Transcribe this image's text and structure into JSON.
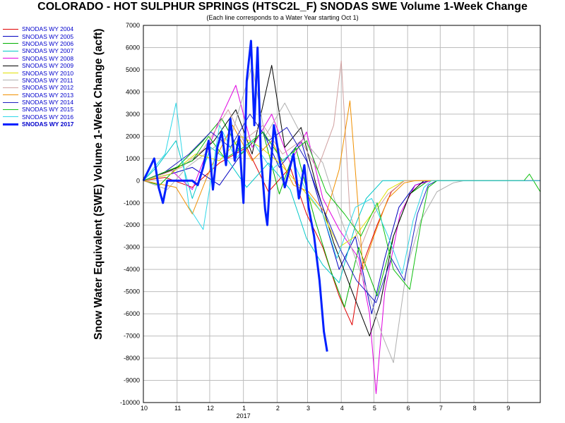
{
  "chart_data": {
    "type": "line",
    "title": "COLORADO - HOT SULPHUR SPRINGS (HTSC2L_F) SNODAS SWE Volume 1-Week Change",
    "subtitle": "(Each line corresponds to a Water Year starting Oct 1)",
    "ylabel": "Snow Water Equivalent (SWE) Volume 1-Week Change (acft)",
    "xlabel_year": "2017",
    "ylim": [
      -10000,
      7000
    ],
    "yticks": [
      7000,
      6000,
      5000,
      4000,
      3000,
      2000,
      1000,
      0,
      -1000,
      -2000,
      -3000,
      -4000,
      -5000,
      -6000,
      -7000,
      -8000,
      -9000,
      -10000
    ],
    "xlim": [
      0,
      365
    ],
    "xticks": [
      {
        "label": "10",
        "day": 0
      },
      {
        "label": "11",
        "day": 31
      },
      {
        "label": "12",
        "day": 61
      },
      {
        "label": "1",
        "day": 92
      },
      {
        "label": "2",
        "day": 123
      },
      {
        "label": "3",
        "day": 151
      },
      {
        "label": "4",
        "day": 182
      },
      {
        "label": "5",
        "day": 212
      },
      {
        "label": "6",
        "day": 243
      },
      {
        "label": "7",
        "day": 273
      },
      {
        "label": "8",
        "day": 304
      },
      {
        "label": "9",
        "day": 335
      }
    ],
    "grid": true,
    "legend_position": "left",
    "series": [
      {
        "name": "SNODAS WY 2004",
        "color": "#e00000",
        "width": 1,
        "points": [
          [
            0,
            0
          ],
          [
            20,
            150
          ],
          [
            45,
            -300
          ],
          [
            70,
            800
          ],
          [
            95,
            1500
          ],
          [
            115,
            -500
          ],
          [
            135,
            600
          ],
          [
            150,
            -1500
          ],
          [
            165,
            -3000
          ],
          [
            180,
            -5200
          ],
          [
            192,
            -6500
          ],
          [
            200,
            -4000
          ],
          [
            215,
            -2000
          ],
          [
            228,
            -500
          ],
          [
            240,
            0
          ],
          [
            365,
            0
          ]
        ]
      },
      {
        "name": "SNODAS WY 2005",
        "color": "#0000c0",
        "width": 1,
        "points": [
          [
            0,
            0
          ],
          [
            25,
            300
          ],
          [
            45,
            600
          ],
          [
            70,
            -200
          ],
          [
            90,
            1200
          ],
          [
            110,
            2200
          ],
          [
            125,
            600
          ],
          [
            145,
            1800
          ],
          [
            165,
            -1500
          ],
          [
            180,
            -4000
          ],
          [
            195,
            -2500
          ],
          [
            210,
            -6000
          ],
          [
            222,
            -3500
          ],
          [
            235,
            -1200
          ],
          [
            250,
            -200
          ],
          [
            262,
            0
          ],
          [
            365,
            0
          ]
        ]
      },
      {
        "name": "SNODAS WY 2006",
        "color": "#00b000",
        "width": 1,
        "points": [
          [
            0,
            0
          ],
          [
            15,
            -200
          ],
          [
            35,
            800
          ],
          [
            55,
            1800
          ],
          [
            72,
            2800
          ],
          [
            90,
            1200
          ],
          [
            110,
            2200
          ],
          [
            125,
            -600
          ],
          [
            140,
            1500
          ],
          [
            158,
            -1800
          ],
          [
            172,
            -4000
          ],
          [
            185,
            -5700
          ],
          [
            198,
            -3000
          ],
          [
            215,
            -5200
          ],
          [
            230,
            -2500
          ],
          [
            245,
            -600
          ],
          [
            262,
            0
          ],
          [
            365,
            0
          ]
        ]
      },
      {
        "name": "SNODAS WY 2007",
        "color": "#00c8c8",
        "width": 1,
        "points": [
          [
            0,
            0
          ],
          [
            12,
            600
          ],
          [
            30,
            1800
          ],
          [
            45,
            -800
          ],
          [
            62,
            1500
          ],
          [
            78,
            900
          ],
          [
            95,
            -300
          ],
          [
            115,
            800
          ],
          [
            135,
            -400
          ],
          [
            150,
            -2600
          ],
          [
            165,
            -3800
          ],
          [
            180,
            -4600
          ],
          [
            195,
            -2000
          ],
          [
            205,
            -800
          ],
          [
            220,
            0
          ],
          [
            365,
            0
          ]
        ]
      },
      {
        "name": "SNODAS WY 2008",
        "color": "#e000e0",
        "width": 1,
        "points": [
          [
            0,
            0
          ],
          [
            25,
            500
          ],
          [
            45,
            -400
          ],
          [
            68,
            2500
          ],
          [
            85,
            4300
          ],
          [
            100,
            1500
          ],
          [
            118,
            3000
          ],
          [
            135,
            800
          ],
          [
            150,
            2200
          ],
          [
            165,
            -800
          ],
          [
            180,
            -2200
          ],
          [
            198,
            -3500
          ],
          [
            208,
            -6000
          ],
          [
            214,
            -9600
          ],
          [
            222,
            -5000
          ],
          [
            236,
            -1500
          ],
          [
            250,
            -200
          ],
          [
            265,
            0
          ],
          [
            365,
            0
          ]
        ]
      },
      {
        "name": "SNODAS WY 2009",
        "color": "#000000",
        "width": 1,
        "points": [
          [
            0,
            0
          ],
          [
            22,
            400
          ],
          [
            45,
            900
          ],
          [
            65,
            1800
          ],
          [
            85,
            3200
          ],
          [
            100,
            1200
          ],
          [
            118,
            5200
          ],
          [
            130,
            1500
          ],
          [
            145,
            2400
          ],
          [
            160,
            -400
          ],
          [
            175,
            -2800
          ],
          [
            192,
            -5000
          ],
          [
            208,
            -7000
          ],
          [
            218,
            -5500
          ],
          [
            230,
            -2500
          ],
          [
            245,
            -600
          ],
          [
            258,
            0
          ],
          [
            365,
            0
          ]
        ]
      },
      {
        "name": "SNODAS WY 2010",
        "color": "#e0e000",
        "width": 1,
        "points": [
          [
            0,
            0
          ],
          [
            25,
            300
          ],
          [
            48,
            1200
          ],
          [
            70,
            900
          ],
          [
            90,
            2000
          ],
          [
            108,
            1500
          ],
          [
            125,
            800
          ],
          [
            145,
            -300
          ],
          [
            165,
            -1500
          ],
          [
            180,
            -3000
          ],
          [
            195,
            -2500
          ],
          [
            210,
            -1500
          ],
          [
            225,
            -400
          ],
          [
            240,
            0
          ],
          [
            365,
            0
          ]
        ]
      },
      {
        "name": "SNODAS WY 2011",
        "color": "#b0b0b0",
        "width": 1,
        "points": [
          [
            0,
            0
          ],
          [
            22,
            -400
          ],
          [
            40,
            600
          ],
          [
            65,
            1500
          ],
          [
            82,
            2200
          ],
          [
            100,
            5200
          ],
          [
            112,
            2000
          ],
          [
            130,
            3500
          ],
          [
            148,
            1800
          ],
          [
            165,
            800
          ],
          [
            180,
            -1500
          ],
          [
            195,
            -3500
          ],
          [
            210,
            -5500
          ],
          [
            220,
            -7000
          ],
          [
            230,
            -8200
          ],
          [
            242,
            -4000
          ],
          [
            255,
            -1800
          ],
          [
            270,
            -500
          ],
          [
            285,
            -100
          ],
          [
            295,
            0
          ],
          [
            365,
            0
          ]
        ]
      },
      {
        "name": "SNODAS WY 2012",
        "color": "#d0a0a0",
        "width": 1,
        "points": [
          [
            0,
            0
          ],
          [
            18,
            300
          ],
          [
            35,
            600
          ],
          [
            55,
            1400
          ],
          [
            78,
            3200
          ],
          [
            92,
            1800
          ],
          [
            110,
            2500
          ],
          [
            128,
            1200
          ],
          [
            145,
            1800
          ],
          [
            160,
            500
          ],
          [
            175,
            2500
          ],
          [
            182,
            5400
          ],
          [
            190,
            -1500
          ],
          [
            200,
            -3000
          ],
          [
            212,
            -1500
          ],
          [
            225,
            -600
          ],
          [
            240,
            0
          ],
          [
            365,
            0
          ]
        ]
      },
      {
        "name": "SNODAS WY 2013",
        "color": "#f09000",
        "width": 1,
        "points": [
          [
            0,
            0
          ],
          [
            30,
            -300
          ],
          [
            45,
            -1500
          ],
          [
            62,
            600
          ],
          [
            82,
            2500
          ],
          [
            100,
            900
          ],
          [
            118,
            1800
          ],
          [
            138,
            -200
          ],
          [
            152,
            -500
          ],
          [
            168,
            -1500
          ],
          [
            180,
            500
          ],
          [
            190,
            3600
          ],
          [
            202,
            -4000
          ],
          [
            212,
            -2500
          ],
          [
            225,
            -800
          ],
          [
            240,
            -100
          ],
          [
            250,
            0
          ],
          [
            365,
            0
          ]
        ]
      },
      {
        "name": "SNODAS WY 2014",
        "color": "#2020c0",
        "width": 1,
        "points": [
          [
            0,
            0
          ],
          [
            20,
            400
          ],
          [
            42,
            1200
          ],
          [
            62,
            2200
          ],
          [
            80,
            1500
          ],
          [
            98,
            3000
          ],
          [
            115,
            1800
          ],
          [
            132,
            2400
          ],
          [
            150,
            900
          ],
          [
            165,
            -1200
          ],
          [
            180,
            -3000
          ],
          [
            196,
            -4500
          ],
          [
            214,
            -5500
          ],
          [
            228,
            -3500
          ],
          [
            240,
            -4500
          ],
          [
            252,
            -1500
          ],
          [
            262,
            -200
          ],
          [
            270,
            0
          ],
          [
            365,
            0
          ]
        ]
      },
      {
        "name": "SNODAS WY 2015",
        "color": "#10c010",
        "width": 1,
        "points": [
          [
            0,
            0
          ],
          [
            25,
            500
          ],
          [
            45,
            900
          ],
          [
            60,
            2000
          ],
          [
            75,
            1000
          ],
          [
            92,
            1500
          ],
          [
            110,
            2200
          ],
          [
            128,
            900
          ],
          [
            150,
            1800
          ],
          [
            168,
            -500
          ],
          [
            185,
            -1500
          ],
          [
            200,
            -2500
          ],
          [
            215,
            -1000
          ],
          [
            230,
            -4000
          ],
          [
            245,
            -4900
          ],
          [
            255,
            -2000
          ],
          [
            262,
            -300
          ],
          [
            270,
            0
          ],
          [
            350,
            0
          ],
          [
            355,
            300
          ],
          [
            365,
            -500
          ]
        ]
      },
      {
        "name": "SNODAS WY 2016",
        "color": "#30d8e8",
        "width": 1,
        "points": [
          [
            0,
            0
          ],
          [
            20,
            1200
          ],
          [
            30,
            3500
          ],
          [
            42,
            -1200
          ],
          [
            55,
            -2200
          ],
          [
            70,
            2500
          ],
          [
            85,
            1000
          ],
          [
            100,
            1800
          ],
          [
            118,
            500
          ],
          [
            135,
            1200
          ],
          [
            150,
            -500
          ],
          [
            165,
            -1500
          ],
          [
            178,
            -3500
          ],
          [
            195,
            -1200
          ],
          [
            210,
            -800
          ],
          [
            225,
            -2500
          ],
          [
            238,
            -4200
          ],
          [
            248,
            -1800
          ],
          [
            258,
            -300
          ],
          [
            265,
            0
          ],
          [
            365,
            0
          ]
        ]
      },
      {
        "name": "SNODAS WY 2017",
        "color": "#0020ff",
        "width": 3,
        "points": [
          [
            0,
            0
          ],
          [
            5,
            500
          ],
          [
            10,
            1000
          ],
          [
            14,
            -300
          ],
          [
            18,
            -1000
          ],
          [
            22,
            0
          ],
          [
            30,
            0
          ],
          [
            45,
            0
          ],
          [
            50,
            -200
          ],
          [
            55,
            600
          ],
          [
            60,
            1800
          ],
          [
            64,
            -400
          ],
          [
            68,
            1500
          ],
          [
            72,
            2200
          ],
          [
            76,
            700
          ],
          [
            80,
            2800
          ],
          [
            84,
            900
          ],
          [
            88,
            2000
          ],
          [
            92,
            -1000
          ],
          [
            95,
            4500
          ],
          [
            99,
            6300
          ],
          [
            102,
            2500
          ],
          [
            105,
            6000
          ],
          [
            108,
            1200
          ],
          [
            112,
            -1300
          ],
          [
            114,
            -2000
          ],
          [
            117,
            500
          ],
          [
            120,
            2500
          ],
          [
            125,
            1000
          ],
          [
            130,
            -300
          ],
          [
            138,
            1200
          ],
          [
            143,
            -800
          ],
          [
            148,
            700
          ],
          [
            152,
            -1200
          ],
          [
            157,
            -2500
          ],
          [
            162,
            -4500
          ],
          [
            166,
            -6800
          ],
          [
            169,
            -7700
          ]
        ]
      }
    ]
  }
}
